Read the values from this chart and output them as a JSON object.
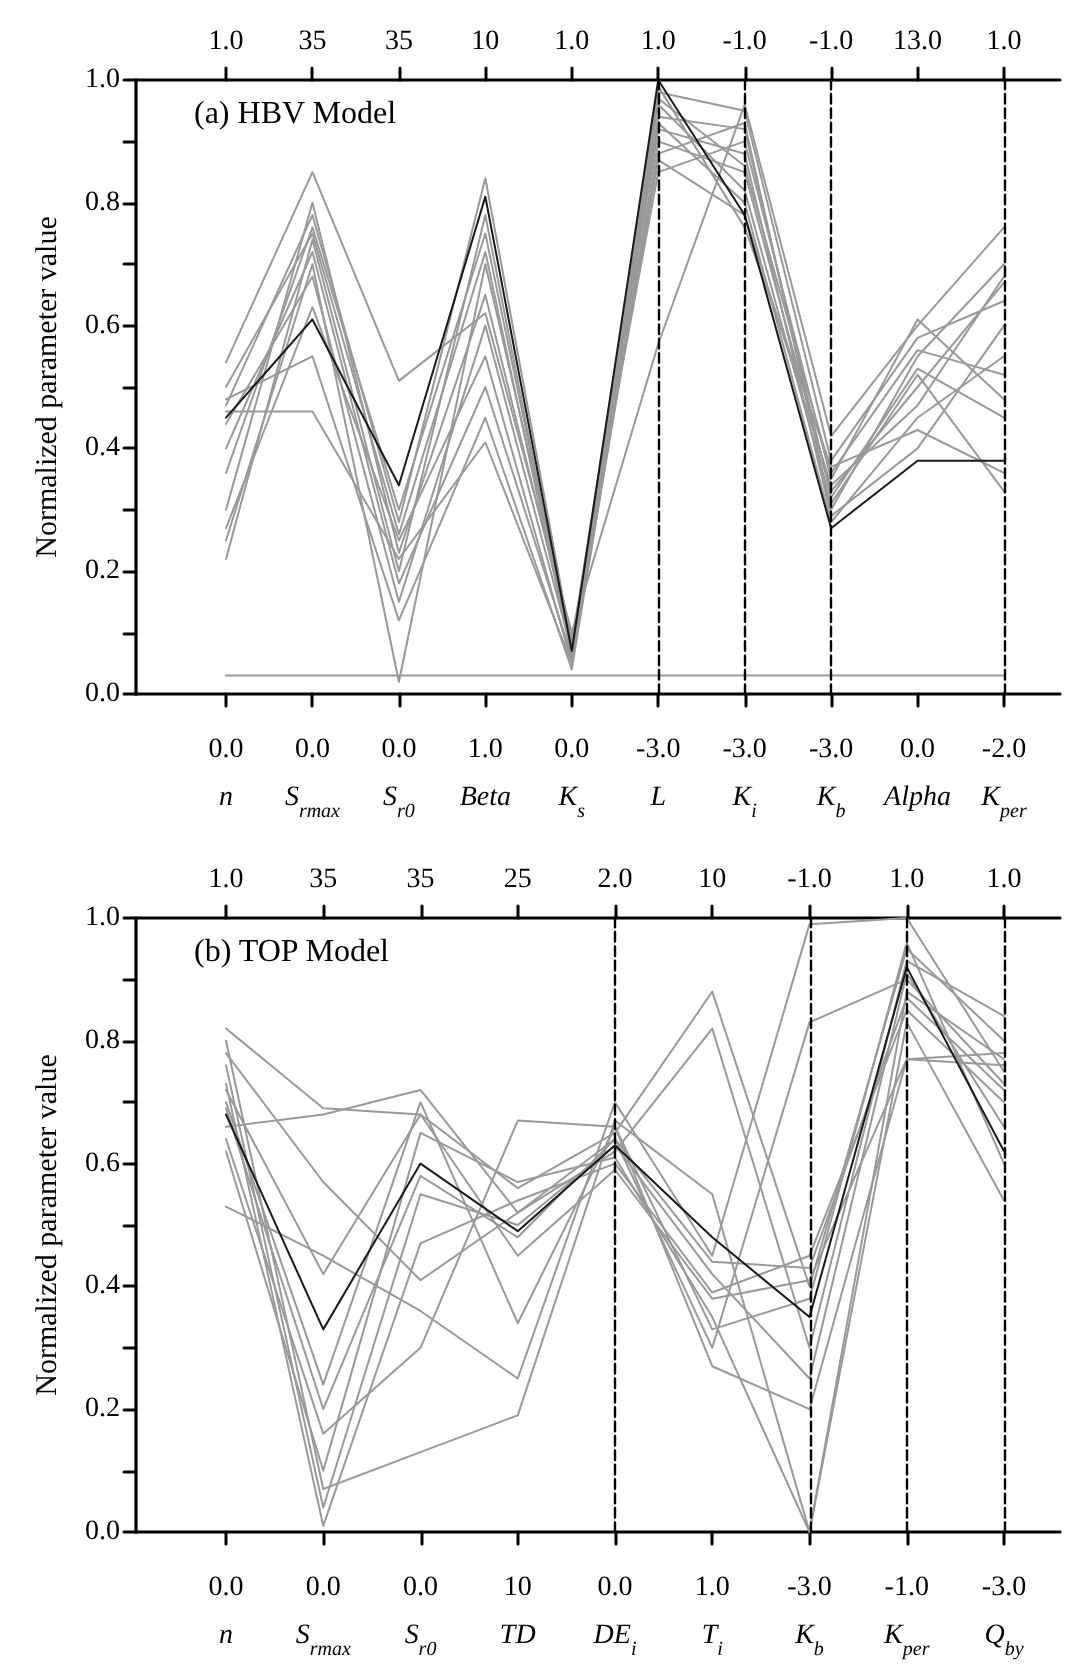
{
  "chart_data": [
    {
      "type": "line",
      "title": "(a) HBV Model",
      "ylabel": "Normalized parameter value",
      "categories": [
        "0.0\nn",
        "0.0\nS$_{rmax}$",
        "0.0\nS$_{r0}$",
        "1.0\nBeta",
        "0.0\nK$_{s}$",
        "-3.0\nL",
        "-3.0\nK$_{i}$",
        "-3.0\nK$_{b}$",
        "0.0\nAlpha",
        "-2.0\nK$_{per}$"
      ],
      "annotations": [
        "1.0",
        "35",
        "35",
        "10",
        "1.0",
        "1.0",
        "-1.0",
        "-1.0",
        "13.0",
        "1.0"
      ],
      "ylim": [
        0,
        1
      ],
      "yticks": [
        {
          "value": 0,
          "label": "0.0"
        },
        {
          "value": 0.1,
          "label": null
        },
        {
          "value": 0.2,
          "label": "0.2"
        },
        {
          "value": 0.3,
          "label": null
        },
        {
          "value": 0.4,
          "label": "0.4"
        },
        {
          "value": 0.5,
          "label": null
        },
        {
          "value": 0.6,
          "label": "0.6"
        },
        {
          "value": 0.7,
          "label": null
        },
        {
          "value": 0.8,
          "label": "0.8"
        },
        {
          "value": 0.9,
          "label": null
        },
        {
          "value": 1,
          "label": "1.0"
        }
      ],
      "marker": "none",
      "line_style": "solid",
      "ref_lines": [
        {
          "axis": "x",
          "value": "-3.0\nL",
          "line_style": "dashed",
          "color": "#000000"
        },
        {
          "axis": "x",
          "value": "-3.0\nK$_{i}$",
          "line_style": "dashed",
          "color": "#000000"
        },
        {
          "axis": "x",
          "value": "-3.0\nK$_{b}$",
          "line_style": "dashed",
          "color": "#000000"
        },
        {
          "axis": "x",
          "value": "-2.0\nK$_{per}$",
          "line_style": "dashed",
          "color": "#000000"
        }
      ],
      "series": [
        {
          "color": "#999999",
          "values": [
            0.03,
            0.03,
            0.03,
            0.03,
            0.03,
            0.03,
            0.03,
            0.03,
            0.03,
            0.03
          ]
        },
        {
          "color": "#999999",
          "values": [
            0.54,
            0.85,
            0.51,
            0.62,
            0.1,
            0.57,
            0.96,
            0.42,
            0.6,
            0.76
          ]
        },
        {
          "color": "#999999",
          "values": [
            0.46,
            0.46,
            0.22,
            0.41,
            0.05,
            0.88,
            0.93,
            0.3,
            0.55,
            0.7
          ]
        },
        {
          "color": "#999999",
          "values": [
            0.48,
            0.55,
            0.12,
            0.45,
            0.04,
            0.9,
            0.85,
            0.33,
            0.5,
            0.67
          ]
        },
        {
          "color": "#999999",
          "values": [
            0.47,
            0.78,
            0.28,
            0.84,
            0.08,
            0.98,
            0.95,
            0.38,
            0.58,
            0.64
          ]
        },
        {
          "color": "#999999",
          "values": [
            0.22,
            0.74,
            0.2,
            0.78,
            0.06,
            0.93,
            0.8,
            0.28,
            0.45,
            0.55
          ]
        },
        {
          "color": "#999999",
          "values": [
            0.25,
            0.7,
            0.02,
            0.7,
            0.09,
            0.85,
            0.9,
            0.35,
            0.61,
            0.48
          ]
        },
        {
          "color": "#999999",
          "values": [
            0.27,
            0.63,
            0.25,
            0.55,
            0.05,
            0.92,
            0.88,
            0.29,
            0.4,
            0.6
          ]
        },
        {
          "color": "#999999",
          "values": [
            0.36,
            0.76,
            0.3,
            0.75,
            0.07,
            0.96,
            0.82,
            0.31,
            0.52,
            0.33
          ]
        },
        {
          "color": "#999999",
          "values": [
            0.4,
            0.72,
            0.18,
            0.5,
            0.06,
            0.99,
            0.76,
            0.37,
            0.43,
            0.36
          ]
        },
        {
          "color": "#999999",
          "values": [
            0.3,
            0.8,
            0.23,
            0.65,
            0.08,
            0.94,
            0.92,
            0.32,
            0.53,
            0.45
          ]
        },
        {
          "color": "#999999",
          "values": [
            0.44,
            0.68,
            0.15,
            0.6,
            0.07,
            0.87,
            0.78,
            0.34,
            0.47,
            0.68
          ]
        },
        {
          "color": "#999999",
          "values": [
            0.5,
            0.75,
            0.26,
            0.72,
            0.06,
            0.97,
            0.86,
            0.36,
            0.56,
            0.52
          ]
        },
        {
          "color": "#1a1a1a",
          "values": [
            0.45,
            0.61,
            0.34,
            0.81,
            0.07,
            1.0,
            0.78,
            0.27,
            0.38,
            0.38
          ]
        }
      ]
    },
    {
      "type": "line",
      "title": "(b) TOP Model",
      "ylabel": "Normalized parameter value",
      "categories": [
        "0.0\nn",
        "0.0\nS$_{rmax}$",
        "0.0\nS$_{r0}$",
        "10\nTD",
        "0.0\nDE$_{i}$",
        "1.0\nT$_{i}$",
        "-3.0\nK$_{b}$",
        "-1.0\nK$_{per}$",
        "-3.0\nQ$_{by}$"
      ],
      "annotations": [
        "1.0",
        "35",
        "35",
        "25",
        "2.0",
        "10",
        "-1.0",
        "1.0",
        "1.0"
      ],
      "ylim": [
        0,
        1
      ],
      "yticks": [
        {
          "value": 0,
          "label": "0.0"
        },
        {
          "value": 0.1,
          "label": null
        },
        {
          "value": 0.2,
          "label": "0.2"
        },
        {
          "value": 0.3,
          "label": null
        },
        {
          "value": 0.4,
          "label": "0.4"
        },
        {
          "value": 0.5,
          "label": null
        },
        {
          "value": 0.6,
          "label": "0.6"
        },
        {
          "value": 0.7,
          "label": null
        },
        {
          "value": 0.8,
          "label": "0.8"
        },
        {
          "value": 0.9,
          "label": null
        },
        {
          "value": 1,
          "label": "1.0"
        }
      ],
      "marker": "none",
      "line_style": "solid",
      "ref_lines": [
        {
          "axis": "x",
          "value": "0.0\nDE$_{i}$",
          "line_style": "dashed",
          "color": "#000000"
        },
        {
          "axis": "x",
          "value": "-3.0\nK$_{b}$",
          "line_style": "dashed",
          "color": "#000000"
        },
        {
          "axis": "x",
          "value": "-1.0\nK$_{per}$",
          "line_style": "dashed",
          "color": "#000000"
        },
        {
          "axis": "x",
          "value": "-3.0\nQ$_{by}$",
          "line_style": "dashed",
          "color": "#000000"
        }
      ],
      "series": [
        {
          "color": "#999999",
          "values": [
            0.82,
            0.69,
            0.68,
            0.56,
            0.65,
            0.88,
            0.4,
            0.95,
            0.8
          ]
        },
        {
          "color": "#999999",
          "values": [
            0.53,
            0.45,
            0.36,
            0.25,
            0.7,
            0.45,
            0.99,
            1.0,
            0.75
          ]
        },
        {
          "color": "#999999",
          "values": [
            0.78,
            0.57,
            0.41,
            0.52,
            0.62,
            0.82,
            0.3,
            0.93,
            0.84
          ]
        },
        {
          "color": "#999999",
          "values": [
            0.66,
            0.68,
            0.72,
            0.52,
            0.64,
            0.3,
            0.83,
            0.9,
            0.73
          ]
        },
        {
          "color": "#999999",
          "values": [
            0.8,
            0.07,
            0.13,
            0.19,
            0.67,
            0.55,
            0.0,
            0.88,
            0.77
          ]
        },
        {
          "color": "#999999",
          "values": [
            0.73,
            0.01,
            0.47,
            0.54,
            0.6,
            0.39,
            0.45,
            0.85,
            0.7
          ]
        },
        {
          "color": "#999999",
          "values": [
            0.7,
            0.24,
            0.7,
            0.34,
            0.66,
            0.27,
            0.2,
            0.77,
            0.78
          ]
        },
        {
          "color": "#999999",
          "values": [
            0.62,
            0.1,
            0.65,
            0.57,
            0.61,
            0.35,
            0.0,
            0.83,
            0.54
          ]
        },
        {
          "color": "#999999",
          "values": [
            0.76,
            0.04,
            0.55,
            0.5,
            0.63,
            0.42,
            0.25,
            0.91,
            0.66
          ]
        },
        {
          "color": "#999999",
          "values": [
            0.64,
            0.16,
            0.3,
            0.67,
            0.66,
            0.33,
            0.38,
            0.96,
            0.6
          ]
        },
        {
          "color": "#999999",
          "values": [
            0.72,
            0.42,
            0.68,
            0.45,
            0.59,
            0.38,
            0.41,
            0.77,
            0.76
          ]
        },
        {
          "color": "#999999",
          "values": [
            0.69,
            0.2,
            0.58,
            0.48,
            0.64,
            0.44,
            0.43,
            0.87,
            0.72
          ]
        },
        {
          "color": "#1a1a1a",
          "values": [
            0.68,
            0.33,
            0.6,
            0.49,
            0.63,
            0.48,
            0.35,
            0.92,
            0.62
          ]
        }
      ]
    }
  ]
}
